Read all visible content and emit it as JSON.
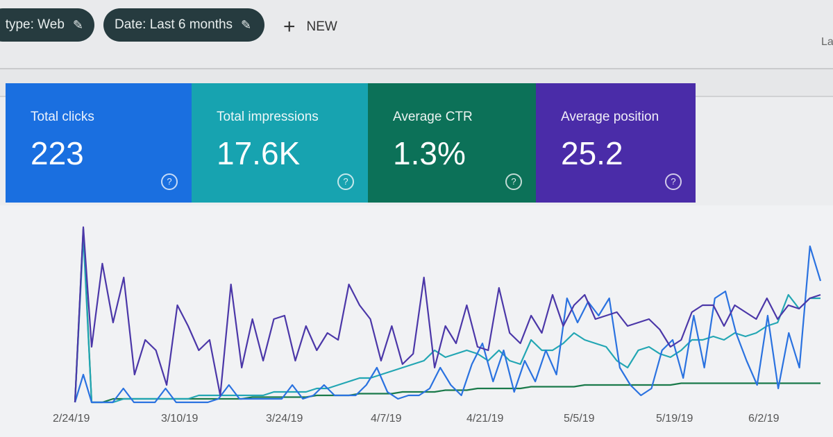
{
  "filters": [
    {
      "label": "type: Web",
      "icon": "pencil-icon"
    },
    {
      "label": "Date: Last 6 months",
      "icon": "pencil-icon"
    }
  ],
  "new_button": {
    "icon": "plus-icon",
    "label": "NEW"
  },
  "corner_label": "La",
  "cards": [
    {
      "label": "Total clicks",
      "value": "223",
      "color": "#1a6fe0",
      "icon": "help-icon"
    },
    {
      "label": "Total impressions",
      "value": "17.6K",
      "color": "#17a3b0",
      "icon": "help-icon"
    },
    {
      "label": "Average CTR",
      "value": "1.3%",
      "color": "#0c7158",
      "icon": "help-icon"
    },
    {
      "label": "Average position",
      "value": "25.2",
      "color": "#4a2ca8",
      "icon": "help-icon"
    }
  ],
  "chart_data": {
    "type": "line",
    "x_tick_labels": [
      "2/24/19",
      "3/10/19",
      "3/24/19",
      "4/7/19",
      "4/21/19",
      "5/5/19",
      "5/19/19",
      "6/2/19"
    ],
    "grid": false,
    "series": [
      {
        "color": "#4b37a8",
        "values": [
          0,
          101,
          32,
          80,
          46,
          72,
          16,
          36,
          30,
          10,
          56,
          44,
          30,
          36,
          4,
          68,
          20,
          48,
          24,
          48,
          50,
          24,
          44,
          30,
          40,
          36,
          68,
          56,
          48,
          24,
          44,
          22,
          28,
          72,
          20,
          44,
          34,
          56,
          32,
          30,
          66,
          40,
          34,
          50,
          40,
          62,
          44,
          56,
          62,
          48,
          50,
          52,
          44,
          46,
          48,
          42,
          32,
          36,
          52,
          56,
          56,
          44,
          56,
          52,
          48,
          60,
          48,
          56,
          54,
          60,
          62
        ]
      },
      {
        "color": "#2a72e0",
        "values": [
          0,
          16,
          0,
          0,
          0,
          8,
          0,
          0,
          0,
          8,
          0,
          0,
          0,
          0,
          2,
          10,
          2,
          2,
          2,
          2,
          2,
          10,
          2,
          4,
          10,
          4,
          4,
          4,
          10,
          20,
          6,
          2,
          4,
          4,
          8,
          20,
          10,
          4,
          22,
          34,
          12,
          30,
          6,
          24,
          12,
          30,
          16,
          60,
          46,
          58,
          50,
          60,
          20,
          10,
          4,
          8,
          30,
          36,
          14,
          50,
          20,
          60,
          64,
          40,
          24,
          10,
          50,
          8,
          40,
          20,
          90,
          70
        ]
      },
      {
        "color": "#22a6b3",
        "values": [
          0,
          96,
          0,
          0,
          0,
          2,
          2,
          2,
          2,
          2,
          2,
          2,
          4,
          4,
          4,
          4,
          4,
          4,
          4,
          6,
          6,
          6,
          6,
          8,
          8,
          10,
          12,
          14,
          14,
          16,
          18,
          20,
          22,
          24,
          30,
          26,
          28,
          30,
          28,
          24,
          30,
          24,
          22,
          36,
          30,
          30,
          34,
          40,
          36,
          34,
          32,
          24,
          20,
          30,
          32,
          28,
          26,
          30,
          36,
          36,
          38,
          36,
          40,
          38,
          40,
          44,
          46,
          62,
          54,
          60,
          60
        ]
      },
      {
        "color": "#1a7a4a",
        "values": [
          0,
          100,
          0,
          0,
          2,
          2,
          2,
          2,
          2,
          2,
          2,
          2,
          2,
          2,
          2,
          2,
          2,
          3,
          3,
          3,
          3,
          3,
          3,
          4,
          4,
          4,
          4,
          5,
          5,
          5,
          5,
          6,
          6,
          6,
          6,
          7,
          7,
          7,
          8,
          8,
          8,
          8,
          8,
          9,
          9,
          9,
          9,
          9,
          10,
          10,
          10,
          10,
          10,
          10,
          10,
          10,
          10,
          11,
          11,
          11,
          11,
          11,
          11,
          11,
          11,
          11,
          11,
          11,
          11,
          11,
          11
        ]
      }
    ]
  }
}
